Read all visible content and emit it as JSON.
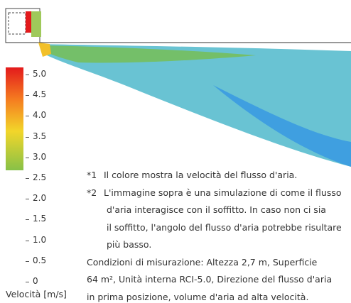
{
  "legend": {
    "ticks": [
      "5.0",
      "4.5",
      "4.0",
      "3.5",
      "3.0",
      "2.5",
      "2.0",
      "1.5",
      "1.0",
      "0.5",
      "0"
    ],
    "label": "Velocità [m/s]"
  },
  "notes": [
    {
      "marker": "*1",
      "lines": [
        "Il colore mostra la velocità del flusso d'aria."
      ]
    },
    {
      "marker": "*2",
      "lines": [
        "L'immagine sopra è una simulazione di come il flusso",
        "d'aria interagisce con il soffitto. In caso non ci sia",
        "il soffitto, l'angolo del flusso d'aria potrebbe risultare",
        "più basso."
      ]
    }
  ],
  "conditions": [
    "Condizioni di misurazione: Altezza 2,7 m, Superficie",
    "64 m², Unità interna RCI-5.0, Direzione del flusso d'aria",
    "in prima posizione, volume d'aria ad alta velocità."
  ]
}
